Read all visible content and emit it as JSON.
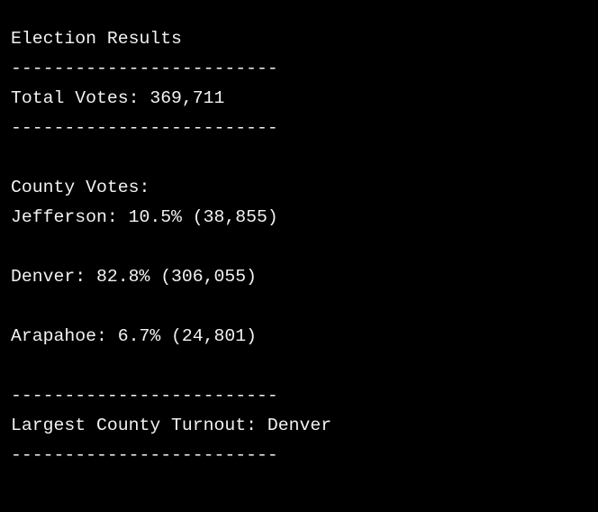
{
  "terminal": {
    "lines": [
      "Election Results",
      "-------------------------",
      "Total Votes: 369,711",
      "-------------------------",
      "County Votes:",
      "Jefferson: 10.5% (38,855)",
      "Denver: 82.8% (306,055)",
      "Arapahoe: 6.7% (24,801)",
      "-------------------------",
      "Largest County Turnout: Denver",
      "-------------------------"
    ]
  }
}
